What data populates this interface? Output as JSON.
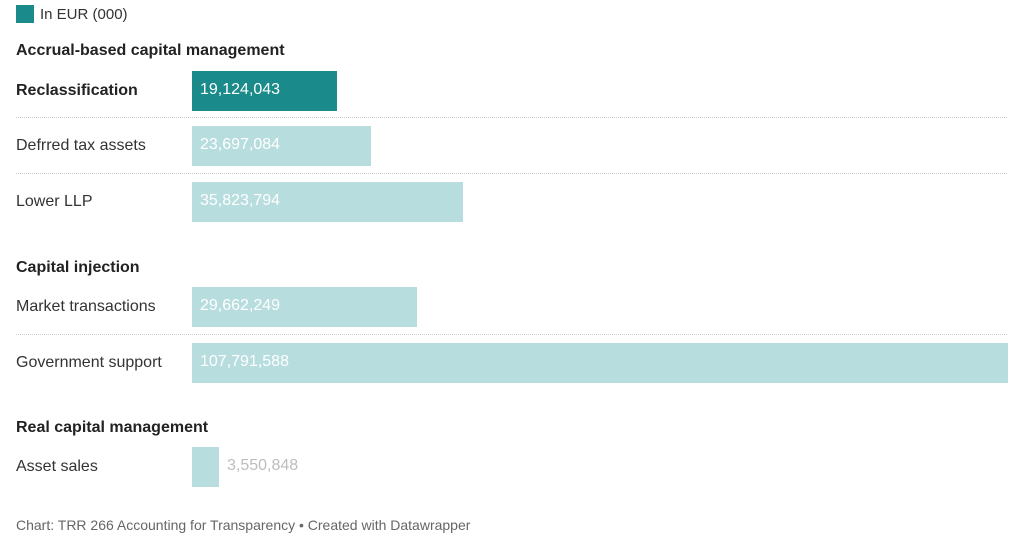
{
  "legend": {
    "label": "In EUR (000)",
    "color": "#1a8a8a"
  },
  "chart_data": {
    "type": "bar",
    "orientation": "horizontal",
    "xlim": [
      0,
      107791588
    ],
    "series": [
      {
        "name": "In EUR (000)"
      }
    ],
    "groups": [
      {
        "title": "Accrual-based capital management",
        "rows": [
          {
            "label": "Reclassification",
            "value": 19124043,
            "display": "19,124,043",
            "highlight": true
          },
          {
            "label": "Defrred tax assets",
            "value": 23697084,
            "display": "23,697,084",
            "highlight": false
          },
          {
            "label": "Lower LLP",
            "value": 35823794,
            "display": "35,823,794",
            "highlight": false
          }
        ]
      },
      {
        "title": "Capital injection",
        "rows": [
          {
            "label": "Market transactions",
            "value": 29662249,
            "display": "29,662,249",
            "highlight": false
          },
          {
            "label": "Government support",
            "value": 107791588,
            "display": "107,791,588",
            "highlight": false
          }
        ]
      },
      {
        "title": "Real capital management",
        "rows": [
          {
            "label": "Asset sales",
            "value": 3550848,
            "display": "3,550,848",
            "highlight": false
          }
        ]
      }
    ],
    "colors": {
      "highlight": "#1a8a8a",
      "normal": "#b8dddf"
    }
  },
  "footer": "Chart: TRR 266 Accounting for Transparency • Created with Datawrapper"
}
